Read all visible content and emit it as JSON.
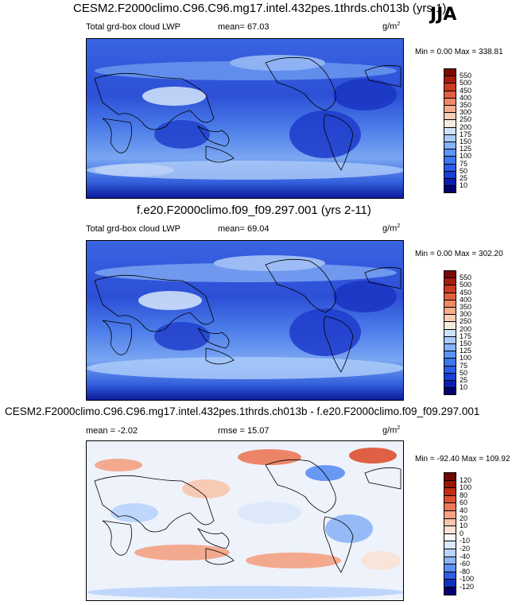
{
  "season": "JJA",
  "panels": [
    {
      "title": "CESM2.F2000climo.C96.C96.mg17.intel.432pes.1thrds.ch013b (yrs 1)",
      "field": "Total grd-box cloud LWP",
      "stat": "mean=  67.03",
      "stat2": "",
      "units": "g/m",
      "units_sup": "2",
      "minmax": "Min =   0.00 Max = 338.81"
    },
    {
      "title": "f.e20.F2000climo.f09_f09.297.001 (yrs 2-11)",
      "field": "Total grd-box cloud LWP",
      "stat": "mean=  69.04",
      "stat2": "",
      "units": "g/m",
      "units_sup": "2",
      "minmax": "Min =   0.00 Max = 302.20"
    },
    {
      "title": "CESM2.F2000climo.C96.C96.mg17.intel.432pes.1thrds.ch013b - f.e20.F2000climo.f09_f09.297.001",
      "field": "",
      "stat": "mean =  -2.02",
      "stat2": "rmse =  15.07",
      "units": "g/m",
      "units_sup": "2",
      "minmax": "Min = -92.40 Max = 109.92"
    }
  ],
  "chart_data": [
    {
      "type": "heatmap",
      "title": "CESM2.F2000climo.C96.C96.mg17.intel.432pes.1thrds.ch013b (yrs 1)",
      "variable": "Total grd-box cloud LWP",
      "units": "g/m2",
      "mean": 67.03,
      "min": 0.0,
      "max": 338.81,
      "colorbar_levels": [
        10,
        25,
        50,
        75,
        100,
        125,
        150,
        175,
        200,
        250,
        300,
        350,
        400,
        450,
        500,
        550
      ],
      "colorbar_colors": [
        "#04006e",
        "#0a1fb0",
        "#1541d8",
        "#2b5de8",
        "#3a78f0",
        "#5c93f5",
        "#86b2f8",
        "#aacbfa",
        "#cfe2fb",
        "#f5ece0",
        "#f7cfb6",
        "#f5ad8b",
        "#f08866",
        "#e35f41",
        "#cc3a22",
        "#a81c10",
        "#7a0a03"
      ]
    },
    {
      "type": "heatmap",
      "title": "f.e20.F2000climo.f09_f09.297.001 (yrs 2-11)",
      "variable": "Total grd-box cloud LWP",
      "units": "g/m2",
      "mean": 69.04,
      "min": 0.0,
      "max": 302.2,
      "colorbar_levels": [
        10,
        25,
        50,
        75,
        100,
        125,
        150,
        175,
        200,
        250,
        300,
        350,
        400,
        450,
        500,
        550
      ],
      "colorbar_colors": [
        "#04006e",
        "#0a1fb0",
        "#1541d8",
        "#2b5de8",
        "#3a78f0",
        "#5c93f5",
        "#86b2f8",
        "#aacbfa",
        "#cfe2fb",
        "#f5ece0",
        "#f7cfb6",
        "#f5ad8b",
        "#f08866",
        "#e35f41",
        "#cc3a22",
        "#a81c10",
        "#7a0a03"
      ]
    },
    {
      "type": "heatmap",
      "title": "CESM2.F2000climo.C96.C96.mg17.intel.432pes.1thrds.ch013b - f.e20.F2000climo.f09_f09.297.001",
      "units": "g/m2",
      "mean": -2.02,
      "rmse": 15.07,
      "min": -92.4,
      "max": 109.92,
      "colorbar_levels": [
        -120,
        -100,
        -80,
        -60,
        -40,
        -20,
        -10,
        0,
        10,
        20,
        40,
        60,
        80,
        100,
        120
      ],
      "colorbar_colors": [
        "#04006e",
        "#1030c0",
        "#2f5fe6",
        "#5a8ff3",
        "#8db5f8",
        "#b9d3fb",
        "#dce9fc",
        "#f6f6f6",
        "#fbe3d6",
        "#f8c6ad",
        "#f4a283",
        "#ec7a58",
        "#de5131",
        "#c22e15",
        "#9d1507",
        "#700701"
      ]
    }
  ]
}
